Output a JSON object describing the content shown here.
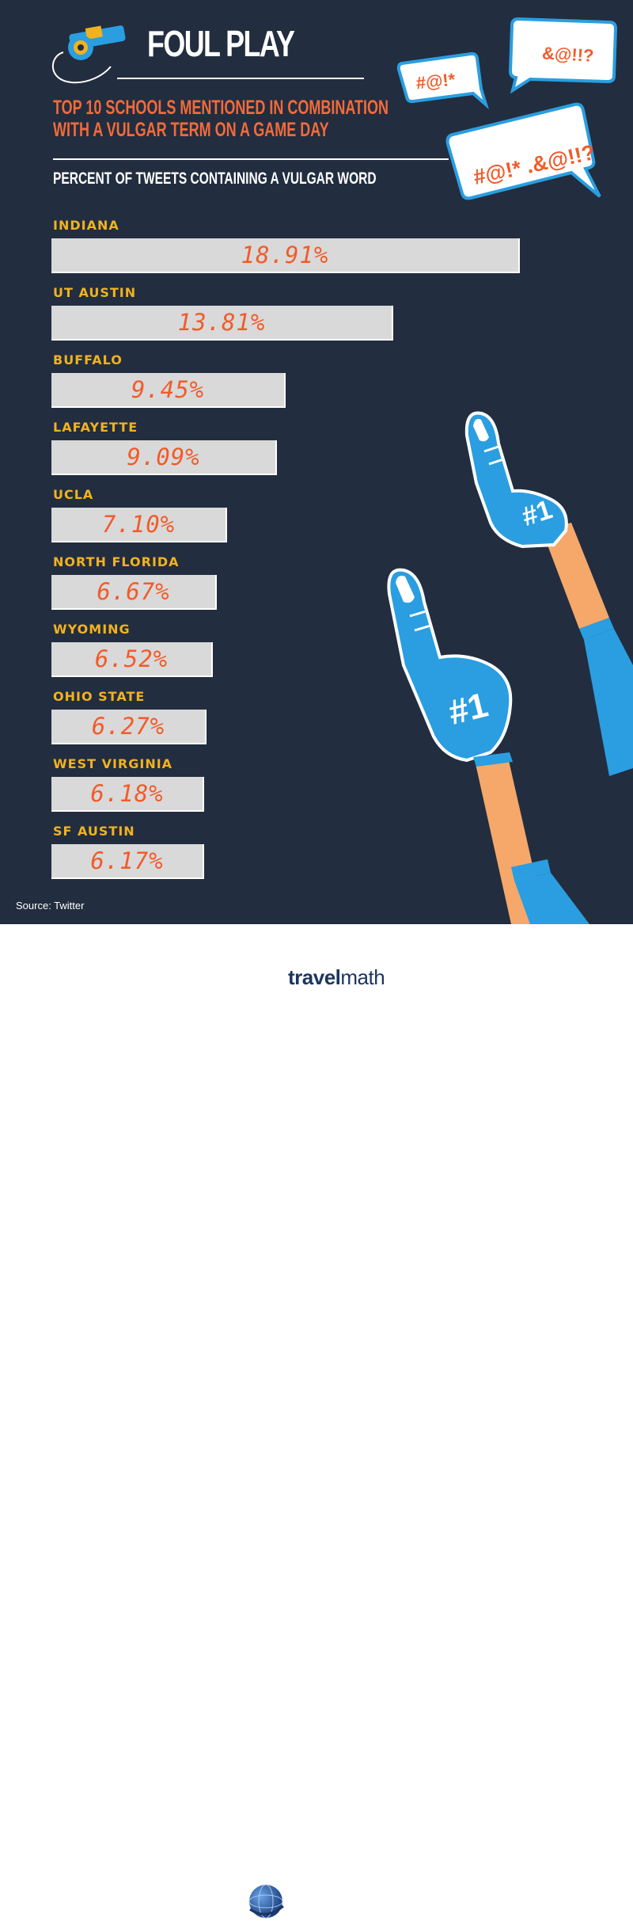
{
  "title": "FOUL PLAY",
  "subtitle_line1": "TOP 10 SCHOOLS MENTIONED IN COMBINATION",
  "subtitle_line2": "WITH A VULGAR TERM ON A GAME DAY",
  "bubbles": [
    "#@!*",
    "&@!!?",
    "#@!* .&@!!?"
  ],
  "foam_finger_text": "#1",
  "source": "Source: Twitter",
  "brand": {
    "part1": "travel",
    "part2": "math"
  },
  "colors": {
    "background": "#222d3f",
    "label": "#f2b21f",
    "value": "#f25b2a",
    "bar": "#d9d9d9",
    "bubble": "#2a9ee0",
    "finger": "#2a9ee0"
  },
  "chart_data": {
    "type": "bar",
    "ylabel": "PERCENT OF TWEETS CONTAINING A VULGAR WORD",
    "categories": [
      "INDIANA",
      "UT AUSTIN",
      "BUFFALO",
      "LAFAYETTE",
      "UCLA",
      "NORTH FLORIDA",
      "WYOMING",
      "OHIO STATE",
      "WEST VIRGINIA",
      "SF AUSTIN"
    ],
    "values": [
      18.91,
      13.81,
      9.45,
      9.09,
      7.1,
      6.67,
      6.52,
      6.27,
      6.18,
      6.17
    ],
    "value_labels": [
      "18.91%",
      "13.81%",
      "9.45%",
      "9.09%",
      "7.10%",
      "6.67%",
      "6.52%",
      "6.27%",
      "6.18%",
      "6.17%"
    ],
    "orientation": "horizontal"
  }
}
